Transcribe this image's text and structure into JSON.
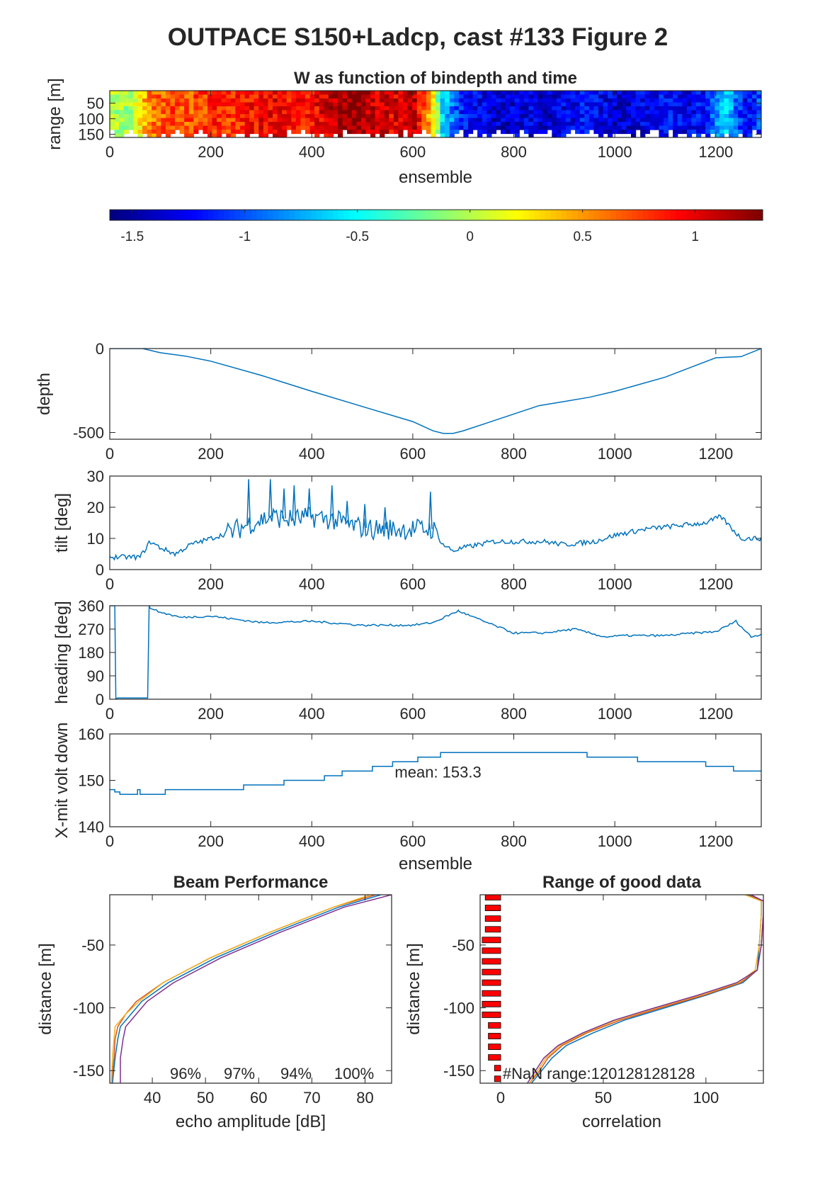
{
  "figure": {
    "title": "OUTPACE S150+Ladcp, cast #133 Figure 2"
  },
  "chart_data": [
    {
      "id": "w_image",
      "type": "heatmap",
      "title": "W as function of bindepth and time",
      "xlabel": "ensemble",
      "ylabel": "range [m]",
      "xlim": [
        0,
        1290
      ],
      "ylim": [
        10,
        160
      ],
      "xticks": [
        "0",
        "200",
        "400",
        "600",
        "800",
        "1000",
        "1200"
      ],
      "yticks": [
        "50",
        "100",
        "150"
      ],
      "colorbar": {
        "colormap": "jet",
        "clim": [
          -1.6,
          1.3
        ],
        "ticks": [
          "-1.5",
          "-1",
          "-0.5",
          "0",
          "0.5",
          "1"
        ]
      },
      "w_profile": {
        "x": [
          0,
          40,
          80,
          120,
          160,
          200,
          240,
          280,
          320,
          360,
          400,
          440,
          480,
          520,
          560,
          600,
          640,
          660,
          700,
          740,
          780,
          820,
          860,
          900,
          940,
          980,
          1020,
          1060,
          1100,
          1140,
          1180,
          1220,
          1260,
          1290
        ],
        "w": [
          0.0,
          -0.1,
          0.6,
          0.7,
          0.7,
          0.8,
          0.8,
          0.9,
          1.0,
          0.9,
          0.9,
          1.1,
          1.3,
          1.1,
          1.0,
          1.2,
          0.3,
          -0.6,
          -1.2,
          -1.3,
          -1.4,
          -1.3,
          -1.4,
          -1.3,
          -1.2,
          -1.3,
          -1.4,
          -1.3,
          -1.2,
          -1.3,
          -1.2,
          -0.6,
          -1.3,
          -1.0
        ]
      }
    },
    {
      "id": "depth",
      "type": "line",
      "ylabel": "depth",
      "xlim": [
        0,
        1290
      ],
      "ylim": [
        -540,
        0
      ],
      "xticks": [
        "0",
        "200",
        "400",
        "600",
        "800",
        "1000",
        "1200"
      ],
      "yticks": [
        "0",
        "-500"
      ],
      "x": [
        0,
        65,
        100,
        150,
        200,
        300,
        400,
        500,
        600,
        640,
        660,
        680,
        700,
        750,
        800,
        850,
        900,
        950,
        1000,
        1100,
        1200,
        1250,
        1290
      ],
      "y": [
        0,
        0,
        -25,
        -45,
        -75,
        -160,
        -255,
        -345,
        -435,
        -490,
        -505,
        -505,
        -490,
        -440,
        -390,
        -340,
        -315,
        -290,
        -255,
        -170,
        -55,
        -48,
        0
      ]
    },
    {
      "id": "tilt",
      "type": "line",
      "ylabel": "tilt [deg]",
      "xlim": [
        0,
        1290
      ],
      "ylim": [
        0,
        30
      ],
      "xticks": [
        "0",
        "200",
        "400",
        "600",
        "800",
        "1000",
        "1200"
      ],
      "yticks": [
        "0",
        "10",
        "20",
        "30"
      ],
      "x": [
        0,
        60,
        80,
        100,
        130,
        160,
        200,
        240,
        280,
        320,
        360,
        400,
        440,
        480,
        520,
        560,
        600,
        640,
        660,
        680,
        700,
        760,
        800,
        860,
        900,
        960,
        1000,
        1060,
        1120,
        1180,
        1210,
        1250,
        1290
      ],
      "y": [
        4,
        4,
        9,
        7,
        5,
        8,
        10,
        12,
        15,
        17,
        16,
        17,
        16,
        14,
        13,
        13,
        13,
        13,
        8,
        6,
        7,
        9,
        9,
        9,
        8,
        9,
        11,
        13,
        14,
        15,
        17,
        10,
        10
      ],
      "spikes": [
        {
          "x": 275,
          "y": 29
        },
        {
          "x": 318,
          "y": 29
        },
        {
          "x": 345,
          "y": 26
        },
        {
          "x": 365,
          "y": 27
        },
        {
          "x": 395,
          "y": 26
        },
        {
          "x": 440,
          "y": 27
        },
        {
          "x": 470,
          "y": 22
        },
        {
          "x": 505,
          "y": 21
        },
        {
          "x": 545,
          "y": 20
        },
        {
          "x": 635,
          "y": 25
        }
      ]
    },
    {
      "id": "heading",
      "type": "line",
      "ylabel": "heading [deg]",
      "xlim": [
        0,
        1290
      ],
      "ylim": [
        0,
        360
      ],
      "xticks": [
        "0",
        "200",
        "400",
        "600",
        "800",
        "1000",
        "1200"
      ],
      "yticks": [
        "0",
        "90",
        "180",
        "270",
        "360"
      ],
      "x": [
        0,
        10,
        12,
        15,
        75,
        78,
        80,
        100,
        140,
        200,
        300,
        400,
        500,
        600,
        640,
        690,
        740,
        800,
        860,
        920,
        980,
        1020,
        1100,
        1160,
        1200,
        1240,
        1270,
        1290
      ],
      "y": [
        360,
        360,
        0,
        5,
        5,
        360,
        350,
        335,
        315,
        320,
        295,
        300,
        285,
        285,
        295,
        340,
        300,
        255,
        255,
        270,
        240,
        245,
        245,
        255,
        260,
        300,
        240,
        250
      ]
    },
    {
      "id": "xmit_volt",
      "type": "line",
      "ylabel": "X-mit volt down",
      "xlabel": "ensemble",
      "annotation": "mean: 153.3",
      "xlim": [
        0,
        1290
      ],
      "ylim": [
        140,
        160
      ],
      "xticks": [
        "0",
        "200",
        "400",
        "600",
        "800",
        "1000",
        "1200"
      ],
      "yticks": [
        "140",
        "150",
        "160"
      ],
      "x": [
        0,
        10,
        20,
        50,
        55,
        60,
        70,
        110,
        265,
        345,
        425,
        460,
        520,
        560,
        610,
        655,
        945,
        1045,
        1180,
        1235,
        1290
      ],
      "y": [
        148,
        147.5,
        147,
        147,
        148,
        147,
        147,
        148,
        149,
        150,
        151,
        152,
        153,
        154,
        155,
        156,
        155,
        154,
        153,
        152,
        152
      ]
    },
    {
      "id": "beam_performance",
      "type": "line",
      "title": "Beam Performance",
      "xlabel": "echo amplitude [dB]",
      "ylabel": "distance [m]",
      "xlim": [
        32,
        85
      ],
      "ylim": [
        -160,
        -10
      ],
      "xticks": [
        "40",
        "50",
        "60",
        "70",
        "80"
      ],
      "yticks": [
        "-50",
        "-100",
        "-150"
      ],
      "beam_percentages": [
        "96%",
        "97%",
        "94%",
        "100%"
      ],
      "series": [
        {
          "depth": [
            -10,
            -20,
            -40,
            -60,
            -80,
            -95,
            -105,
            -115,
            -125,
            -140,
            -160
          ],
          "values": [
            83,
            75,
            63,
            52,
            43,
            38,
            36,
            34,
            33.5,
            33,
            32.5
          ]
        },
        {
          "depth": [
            -10,
            -20,
            -40,
            -60,
            -80,
            -95,
            -105,
            -115,
            -125,
            -140,
            -160
          ],
          "values": [
            82,
            74,
            62,
            51,
            42,
            37,
            35,
            33.5,
            33,
            32.8,
            32.3
          ]
        },
        {
          "depth": [
            -10,
            -20,
            -40,
            -60,
            -80,
            -95,
            -105,
            -115,
            -125,
            -140,
            -160
          ],
          "values": [
            81,
            74,
            62,
            51,
            42,
            37.5,
            35,
            33,
            32.8,
            32.5,
            32.3
          ]
        },
        {
          "depth": [
            -10,
            -20,
            -40,
            -60,
            -80,
            -95,
            -105,
            -115,
            -125,
            -140,
            -160
          ],
          "values": [
            85,
            76,
            64,
            53,
            44,
            39,
            37,
            35,
            34.5,
            34,
            34
          ]
        }
      ]
    },
    {
      "id": "range_good_data",
      "type": "line",
      "title": "Range of good data",
      "xlabel": "correlation",
      "ylabel": "distance [m]",
      "annotation": "#NaN range:120128128128",
      "xlim": [
        -10,
        128
      ],
      "ylim": [
        -160,
        -10
      ],
      "xticks": [
        "0",
        "50",
        "100"
      ],
      "yticks": [
        "-50",
        "-100",
        "-150"
      ],
      "series": [
        {
          "depth": [
            -10,
            -15,
            -25,
            -50,
            -70,
            -80,
            -90,
            -100,
            -110,
            -120,
            -130,
            -140,
            -150,
            -160
          ],
          "values": [
            120,
            127,
            127,
            126,
            125,
            118,
            100,
            80,
            60,
            45,
            32,
            25,
            20,
            15
          ]
        },
        {
          "depth": [
            -10,
            -15,
            -25,
            -50,
            -70,
            -80,
            -90,
            -100,
            -110,
            -120,
            -130,
            -140,
            -150,
            -160
          ],
          "values": [
            121,
            128,
            128,
            127,
            125,
            117,
            99,
            78,
            58,
            42,
            30,
            23,
            19,
            14
          ]
        },
        {
          "depth": [
            -10,
            -15,
            -25,
            -50,
            -70,
            -80,
            -90,
            -100,
            -110,
            -120,
            -130,
            -140,
            -150,
            -160
          ],
          "values": [
            119,
            127,
            127,
            126,
            124,
            116,
            97,
            76,
            56,
            41,
            29,
            22,
            18,
            14
          ]
        },
        {
          "depth": [
            -10,
            -15,
            -25,
            -50,
            -70,
            -80,
            -90,
            -100,
            -110,
            -120,
            -130,
            -140,
            -150,
            -160
          ],
          "values": [
            122,
            128,
            128,
            127,
            125,
            115,
            96,
            75,
            55,
            40,
            28,
            21,
            17,
            13
          ]
        }
      ],
      "colors": [
        "#0072BD",
        "#D95319",
        "#EDB120",
        "#7E2F8E"
      ]
    }
  ]
}
